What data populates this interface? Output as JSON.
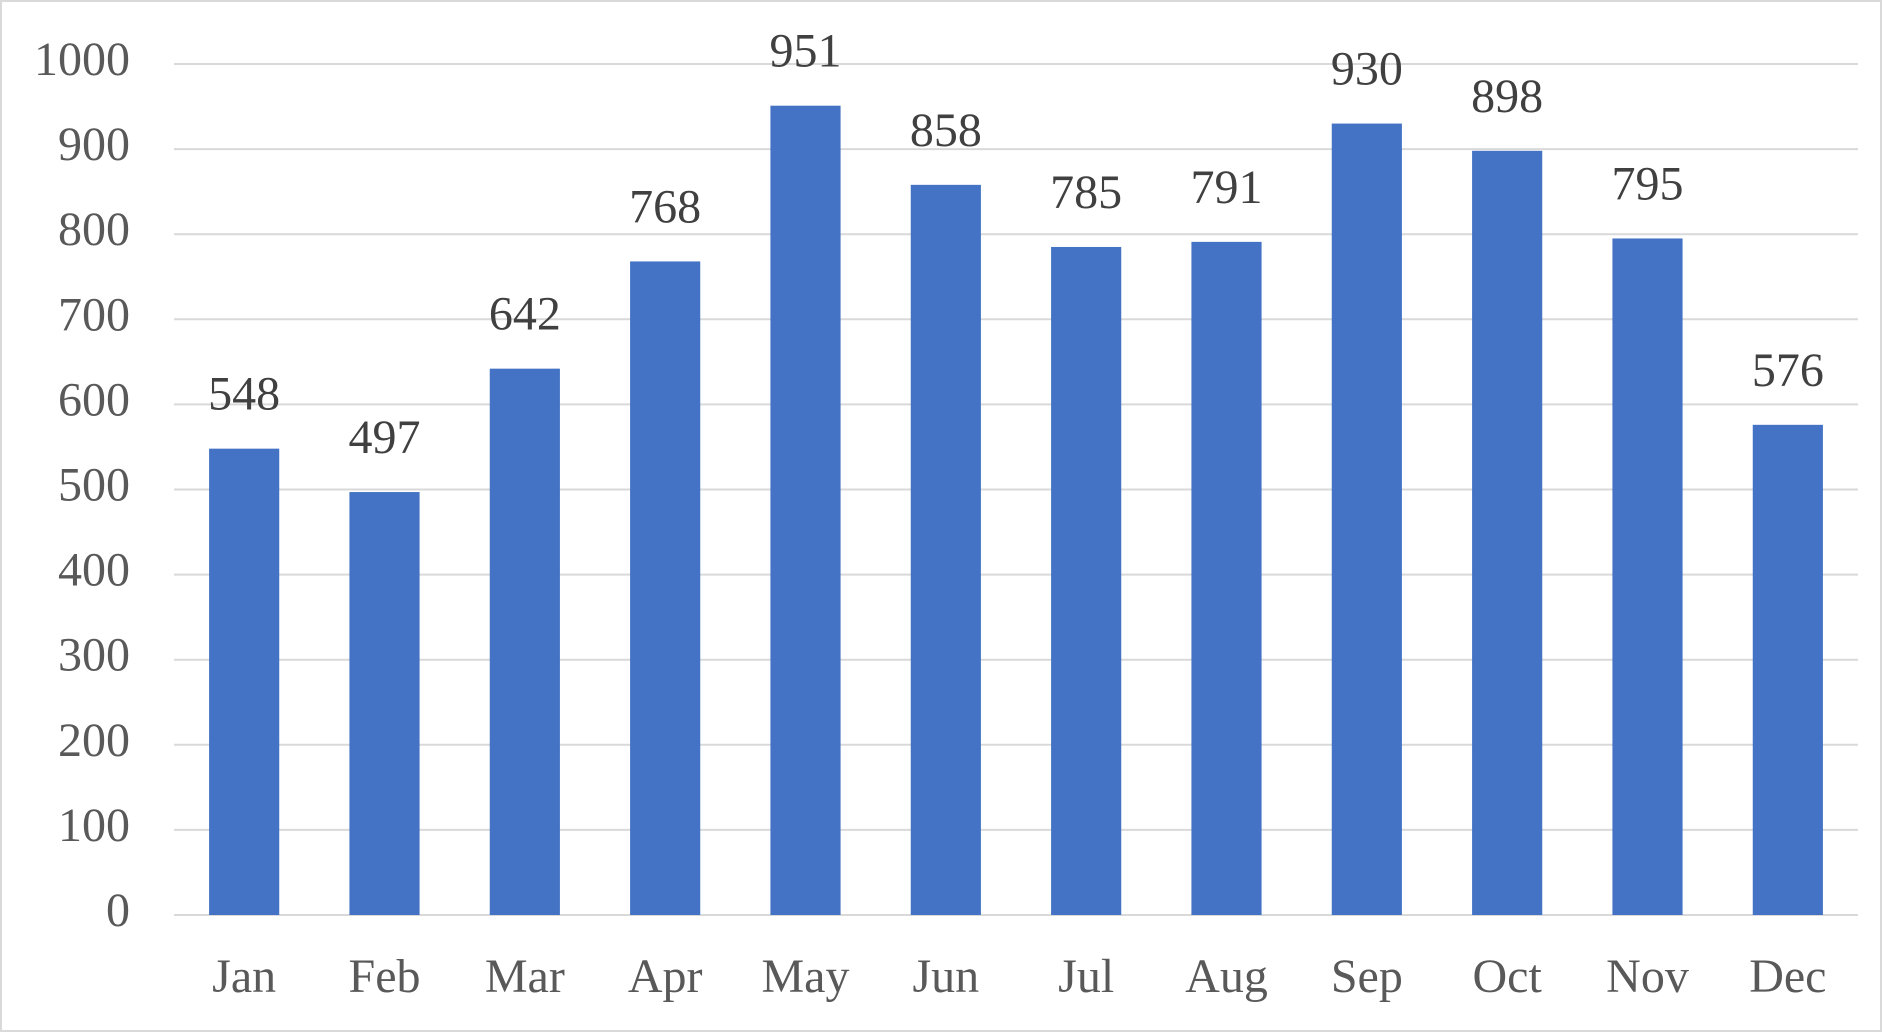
{
  "chart_data": {
    "type": "bar",
    "categories": [
      "Jan",
      "Feb",
      "Mar",
      "Apr",
      "May",
      "Jun",
      "Jul",
      "Aug",
      "Sep",
      "Oct",
      "Nov",
      "Dec"
    ],
    "values": [
      548,
      497,
      642,
      768,
      951,
      858,
      785,
      791,
      930,
      898,
      795,
      576
    ],
    "color": "#4472c4",
    "ylim": [
      0,
      1000
    ],
    "yticks": [
      0,
      100,
      200,
      300,
      400,
      500,
      600,
      700,
      800,
      900,
      1000
    ],
    "grid": true,
    "data_labels": true
  }
}
